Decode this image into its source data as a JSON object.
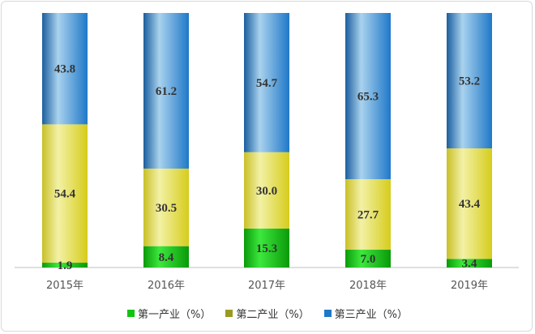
{
  "chart_data": {
    "type": "bar",
    "stacked": true,
    "categories": [
      "2015年",
      "2016年",
      "2017年",
      "2018年",
      "2019年"
    ],
    "series": [
      {
        "name": "第一产业（%）",
        "values": [
          1.9,
          8.4,
          15.3,
          7.0,
          3.4
        ],
        "color": "#11c411",
        "labels": [
          "1.9",
          "8.4",
          "15.3",
          "7.0",
          "3.4"
        ]
      },
      {
        "name": "第二产业（%）",
        "values": [
          54.4,
          30.5,
          30.0,
          27.7,
          43.4
        ],
        "color": "#f2ea1e",
        "labels": [
          "54.4",
          "30.5",
          "30.0",
          "27.7",
          "43.4"
        ]
      },
      {
        "name": "第三产业（%）",
        "values": [
          43.8,
          61.2,
          54.7,
          65.3,
          53.2
        ],
        "color": "#1f78c8",
        "labels": [
          "43.8",
          "61.2",
          "54.7",
          "65.3",
          "53.2"
        ]
      }
    ],
    "ylim": [
      0,
      100
    ],
    "title": "",
    "xlabel": "",
    "ylabel": "",
    "grid": false,
    "legend_position": "bottom"
  }
}
